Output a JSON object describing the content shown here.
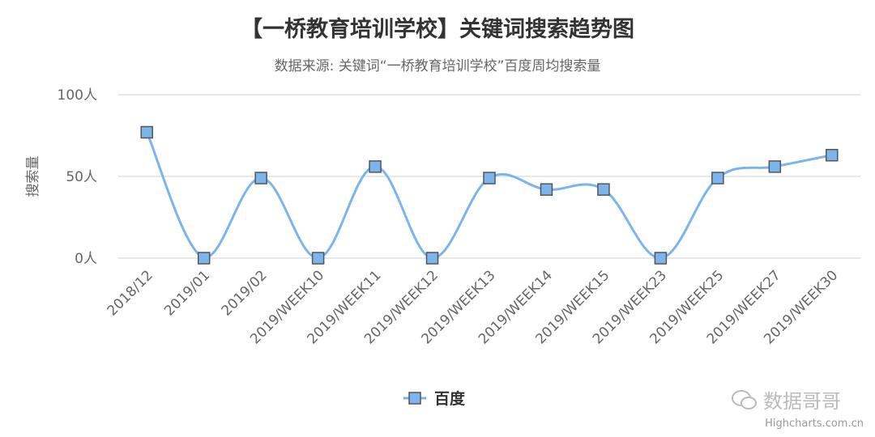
{
  "chart_data": {
    "type": "line",
    "smooth": true,
    "title": "【一桥教育培训学校】关键词搜索趋势图",
    "subtitle": "数据来源: 关键词“一桥教育培训学校”百度周均搜索量",
    "ylabel": "搜索量",
    "xlabel": "",
    "ylim": [
      0,
      100
    ],
    "yticks": [
      0,
      50,
      100
    ],
    "ytick_suffix": "人",
    "grid": true,
    "legend_position": "bottom-center",
    "categories": [
      "2018/12",
      "2019/01",
      "2019/02",
      "2019/WEEK10",
      "2019/WEEK11",
      "2019/WEEK12",
      "2019/WEEK13",
      "2019/WEEK14",
      "2019/WEEK15",
      "2019/WEEK23",
      "2019/WEEK25",
      "2019/WEEK27",
      "2019/WEEK30"
    ],
    "series": [
      {
        "name": "百度",
        "values": [
          77,
          0,
          49,
          0,
          56,
          0,
          49,
          42,
          42,
          0,
          49,
          56,
          63
        ],
        "color": "#7cb5ec",
        "marker": "square"
      }
    ]
  },
  "watermark": "数据哥哥",
  "credits": "Highcharts.com.cn"
}
